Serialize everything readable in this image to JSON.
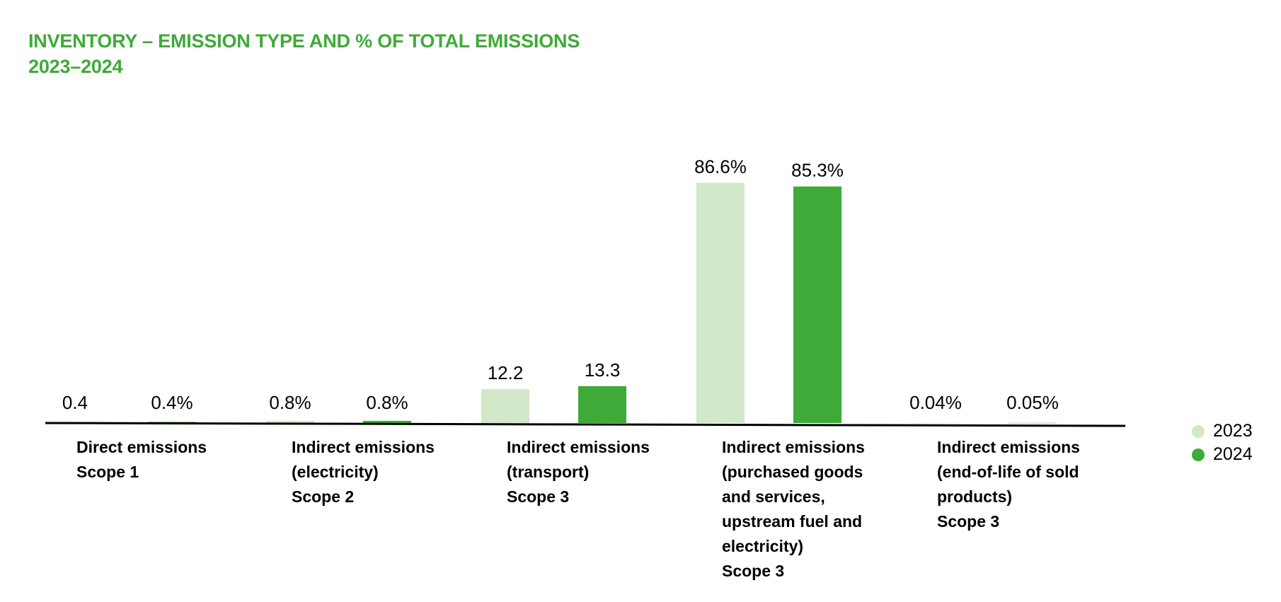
{
  "chart_data": {
    "type": "bar",
    "title": "INVENTORY – EMISSION TYPE AND % OF TOTAL EMISSIONS",
    "subtitle": "2023–2024",
    "categories": [
      [
        "Direct emissions",
        "Scope 1"
      ],
      [
        "Indirect emissions",
        "(electricity)",
        "Scope 2"
      ],
      [
        "Indirect emissions",
        "(transport)",
        "Scope 3"
      ],
      [
        "Indirect emissions",
        "(purchased goods",
        "and services,",
        "upstream fuel and",
        "electricity)",
        "Scope 3"
      ],
      [
        "Indirect emissions",
        "(end-of-life of sold",
        "products)",
        "Scope 3"
      ]
    ],
    "series": [
      {
        "name": "2023",
        "color": "#d3e7c9",
        "values": [
          0.4,
          0.8,
          12.2,
          86.6,
          0.04
        ],
        "labels": [
          "0.4",
          "0.8%",
          "12.2",
          "86.6%",
          "0.04%"
        ]
      },
      {
        "name": "2024",
        "color": "#3faa37",
        "values": [
          0.4,
          0.8,
          13.3,
          85.3,
          0.05
        ],
        "labels": [
          "0.4%",
          "0.8%",
          "13.3",
          "85.3%",
          "0.05%"
        ]
      }
    ],
    "ylim": [
      0,
      100
    ],
    "grid": false,
    "legend": "right"
  }
}
